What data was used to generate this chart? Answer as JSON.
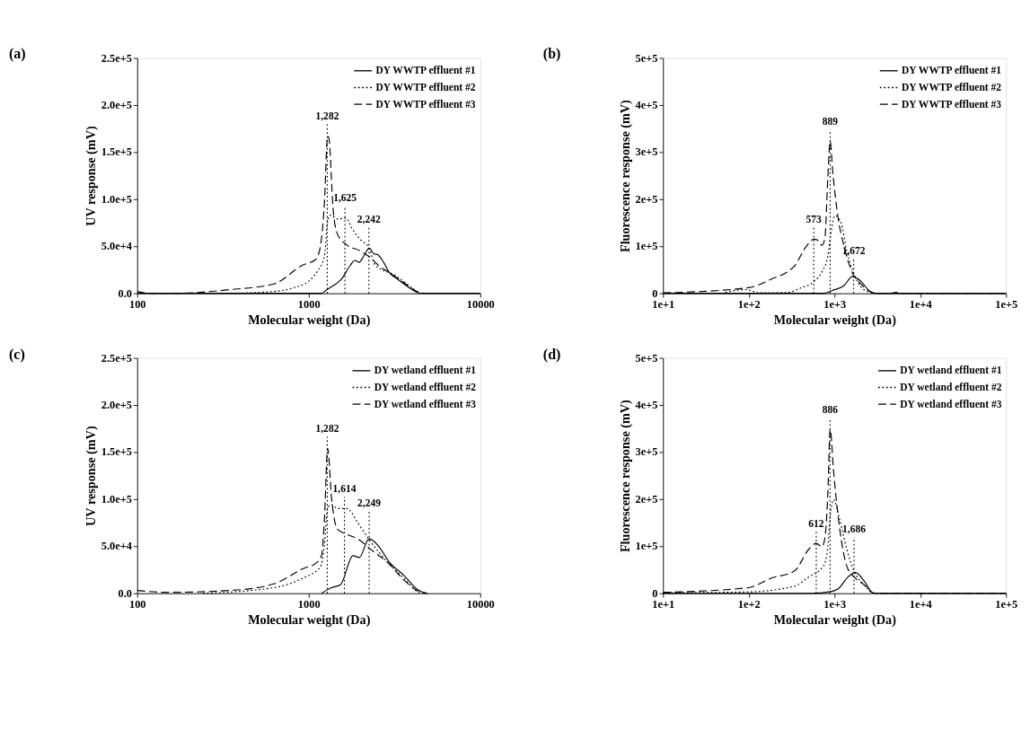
{
  "chart_data": [
    {
      "type": "line",
      "title": "(a)",
      "xlabel": "Molecular weight (Da)",
      "ylabel": "UV response (mV)",
      "log": "x",
      "grid": false,
      "legend": "top right",
      "xlim": [
        100,
        10000
      ],
      "xticks": [
        100,
        1000,
        10000
      ],
      "ylim": [
        0,
        250000
      ],
      "yticks": [
        {
          "value": 0,
          "label": "0.0"
        },
        {
          "value": 50000,
          "label": "5.0e+4"
        },
        {
          "value": 100000,
          "label": "1.0e+5"
        },
        {
          "value": 150000,
          "label": "1.5e+5"
        },
        {
          "value": 200000,
          "label": "2.0e+5"
        },
        {
          "value": 250000,
          "label": "2.5e+5"
        }
      ],
      "series": [
        {
          "name": "DY WWTP effluent #1",
          "color": "#000000",
          "line_style": "solid",
          "x": [
            100,
            1180,
            1300,
            1387,
            1550,
            1750,
            1854,
            1963,
            2100,
            2249,
            2400,
            2528,
            2750,
            2951,
            3300,
            3589,
            4000,
            4500,
            5000,
            10000
          ],
          "values": [
            0,
            0,
            5000,
            8000,
            15000,
            30000,
            35000,
            33000,
            40000,
            48000,
            42000,
            41000,
            32000,
            22000,
            15000,
            10000,
            4000,
            0,
            0,
            0
          ]
        },
        {
          "name": "DY WWTP effluent #2",
          "color": "#000000",
          "line_style": "dotted",
          "x": [
            349,
            625,
            820,
            1000,
            1119,
            1233,
            1288,
            1332,
            1469,
            1650,
            1785,
            2000,
            2249,
            2437,
            3192,
            3732,
            4188,
            4400
          ],
          "values": [
            0,
            2000,
            6000,
            13000,
            23000,
            39000,
            77000,
            83000,
            79000,
            80000,
            69000,
            57000,
            48000,
            30000,
            19000,
            10000,
            3000,
            0
          ]
        },
        {
          "name": "DY WWTP effluent #3",
          "color": "#000000",
          "line_style": "dashed",
          "x": [
            100,
            120,
            161,
            349,
            625,
            922,
            1097,
            1164,
            1233,
            1288,
            1310,
            1387,
            1469,
            1650,
            2000,
            2249,
            2620,
            2951,
            3732,
            4400,
            4700
          ],
          "values": [
            2000,
            0,
            0,
            4000,
            10000,
            30000,
            36000,
            48000,
            95000,
            167000,
            165000,
            89000,
            63000,
            52000,
            45000,
            39000,
            28000,
            22000,
            9000,
            1000,
            0
          ]
        }
      ],
      "ref_lines": [
        {
          "axis": "x",
          "value": 1282,
          "label": "1,282",
          "line_style": "dotted"
        },
        {
          "axis": "x",
          "value": 1625,
          "label": "1,625",
          "line_style": "dotted"
        },
        {
          "axis": "x",
          "value": 2242,
          "label": "2,242",
          "line_style": "dotted"
        }
      ]
    },
    {
      "type": "line",
      "title": "(b)",
      "xlabel": "Molecular weight (Da)",
      "ylabel": "Fluorescence response (mV)",
      "log": "x",
      "grid": false,
      "legend": "top right",
      "xlim": [
        10,
        100000
      ],
      "xticks": [
        {
          "value": 10,
          "label": "1e+1"
        },
        {
          "value": 100,
          "label": "1e+2"
        },
        {
          "value": 1000,
          "label": "1e+3"
        },
        {
          "value": 10000,
          "label": "1e+4"
        },
        {
          "value": 100000,
          "label": "1e+5"
        }
      ],
      "ylim": [
        0,
        500000
      ],
      "yticks": [
        0,
        {
          "value": 100000,
          "label": "1e+5"
        },
        {
          "value": 200000,
          "label": "2e+5"
        },
        {
          "value": 300000,
          "label": "3e+5"
        },
        {
          "value": 400000,
          "label": "4e+5"
        },
        {
          "value": 500000,
          "label": "5e+5"
        }
      ],
      "series": [
        {
          "name": "DY WWTP effluent #1",
          "color": "#000000",
          "line_style": "solid",
          "x": [
            10,
            743,
            940,
            1282,
            1621,
            2051,
            2590,
            3000,
            100000
          ],
          "values": [
            0,
            0,
            6000,
            16000,
            36000,
            25000,
            4000,
            0,
            0
          ]
        },
        {
          "name": "DY WWTP effluent #2",
          "color": "#000000",
          "line_style": "dotted",
          "x": [
            48,
            90,
            133,
            291,
            398,
            573,
            714,
            835,
            903,
            1016,
            1189,
            1388,
            1621,
            2051,
            2590,
            3000,
            100000
          ],
          "values": [
            0,
            8000,
            1000,
            2000,
            11000,
            25000,
            46000,
            79000,
            126000,
            165000,
            150000,
            90000,
            49000,
            13000,
            2000,
            0,
            0
          ]
        },
        {
          "name": "DY WWTP effluent #3",
          "color": "#000000",
          "line_style": "dashed",
          "x": [
            10,
            100,
            182,
            340,
            465,
            573,
            636,
            714,
            772,
            835,
            889,
            955,
            1097,
            1282,
            1621,
            2051,
            2590,
            3000,
            4500,
            5200,
            6000,
            100000
          ],
          "values": [
            1000,
            12000,
            30000,
            58000,
            99000,
            115000,
            113000,
            102000,
            117000,
            245000,
            323000,
            257000,
            162000,
            102000,
            43000,
            19000,
            4000,
            0,
            0,
            2000,
            0,
            0
          ]
        }
      ],
      "ref_lines": [
        {
          "axis": "x",
          "value": 573,
          "label": "573",
          "line_style": "dotted"
        },
        {
          "axis": "x",
          "value": 889,
          "label": "889",
          "line_style": "dotted"
        },
        {
          "axis": "x",
          "value": 1672,
          "label": "1,672",
          "line_style": "dotted"
        }
      ]
    },
    {
      "type": "line",
      "title": "(c)",
      "xlabel": "Molecular weight (Da)",
      "ylabel": "UV response (mV)",
      "log": "x",
      "grid": false,
      "legend": "top right",
      "xlim": [
        100,
        10000
      ],
      "xticks": [
        100,
        1000,
        10000
      ],
      "ylim": [
        0,
        250000
      ],
      "yticks": [
        {
          "value": 0,
          "label": "0.0"
        },
        {
          "value": 50000,
          "label": "5.0e+4"
        },
        {
          "value": 100000,
          "label": "1.0e+5"
        },
        {
          "value": 150000,
          "label": "1.5e+5"
        },
        {
          "value": 200000,
          "label": "2.0e+5"
        },
        {
          "value": 250000,
          "label": "2.5e+5"
        }
      ],
      "series": [
        {
          "name": "DY wetland effluent #1",
          "color": "#000000",
          "line_style": "solid",
          "x": [
            1186,
            1360,
            1530,
            1810,
            1970,
            2249,
            2530,
            2951,
            3589,
            4380,
            4900
          ],
          "values": [
            0,
            6000,
            9000,
            40000,
            38000,
            58000,
            51000,
            33000,
            19000,
            3000,
            0
          ]
        },
        {
          "name": "DY wetland effluent #2",
          "color": "#000000",
          "line_style": "dotted",
          "x": [
            242,
            625,
            922,
            1170,
            1233,
            1288,
            1360,
            1469,
            1670,
            1930,
            2249,
            2951,
            3589,
            4380,
            4600
          ],
          "values": [
            0,
            6000,
            16000,
            28000,
            51000,
            91000,
            94000,
            90000,
            90000,
            75000,
            57000,
            31000,
            16000,
            1000,
            0
          ]
        },
        {
          "name": "DY wetland effluent #3",
          "color": "#000000",
          "line_style": "dashed",
          "x": [
            100,
            149,
            349,
            625,
            922,
            1119,
            1186,
            1233,
            1288,
            1360,
            1469,
            1650,
            2000,
            2249,
            2951,
            3589,
            4380,
            4900
          ],
          "values": [
            3000,
            1000,
            3000,
            10000,
            26000,
            33000,
            40000,
            77000,
            154000,
            100000,
            68000,
            63000,
            56000,
            48000,
            31000,
            14000,
            2000,
            0
          ]
        }
      ],
      "ref_lines": [
        {
          "axis": "x",
          "value": 1282,
          "label": "1,282",
          "line_style": "dotted"
        },
        {
          "axis": "x",
          "value": 1614,
          "label": "1,614",
          "line_style": "dotted"
        },
        {
          "axis": "x",
          "value": 2249,
          "label": "2,249",
          "line_style": "dotted"
        }
      ]
    },
    {
      "type": "line",
      "title": "(d)",
      "xlabel": "Molecular weight (Da)",
      "ylabel": "Fluorescence response (mV)",
      "log": "x",
      "grid": false,
      "legend": "top right",
      "xlim": [
        10,
        100000
      ],
      "xticks": [
        {
          "value": 10,
          "label": "1e+1"
        },
        {
          "value": 100,
          "label": "1e+2"
        },
        {
          "value": 1000,
          "label": "1e+3"
        },
        {
          "value": 10000,
          "label": "1e+4"
        },
        {
          "value": 100000,
          "label": "1e+5"
        }
      ],
      "ylim": [
        0,
        500000
      ],
      "yticks": [
        0,
        {
          "value": 100000,
          "label": "1e+5"
        },
        {
          "value": 200000,
          "label": "2e+5"
        },
        {
          "value": 300000,
          "label": "3e+5"
        },
        {
          "value": 400000,
          "label": "4e+5"
        },
        {
          "value": 500000,
          "label": "5e+5"
        }
      ],
      "series": [
        {
          "name": "DY wetland effluent #1",
          "color": "#000000",
          "line_style": "solid",
          "x": [
            10,
            545,
            870,
            1097,
            1442,
            1754,
            2218,
            2800,
            3200,
            100000
          ],
          "values": [
            0,
            0,
            3000,
            9000,
            35000,
            44000,
            26000,
            1000,
            0,
            0
          ]
        },
        {
          "name": "DY wetland effluent #2",
          "color": "#000000",
          "line_style": "dotted",
          "x": [
            10,
            100,
            340,
            503,
            743,
            835,
            903,
            977,
            1143,
            1388,
            1686,
            2218,
            2800,
            3200,
            100000
          ],
          "values": [
            1000,
            3000,
            15000,
            35000,
            58000,
            99000,
            175000,
            199000,
            158000,
            94000,
            47000,
            18000,
            1000,
            0,
            0
          ]
        },
        {
          "name": "DY wetland effluent #3",
          "color": "#000000",
          "line_style": "dashed",
          "x": [
            10,
            100,
            182,
            340,
            503,
            611,
            714,
            772,
            835,
            889,
            977,
            1143,
            1388,
            1686,
            2218,
            2800,
            3200,
            100000
          ],
          "values": [
            2000,
            12000,
            32000,
            47000,
            94000,
            106000,
            99000,
            117000,
            211000,
            348000,
            257000,
            140000,
            58000,
            35000,
            18000,
            1000,
            0,
            0
          ]
        }
      ],
      "ref_lines": [
        {
          "axis": "x",
          "value": 612,
          "label": "612",
          "line_style": "dotted"
        },
        {
          "axis": "x",
          "value": 886,
          "label": "886",
          "line_style": "dotted"
        },
        {
          "axis": "x",
          "value": 1686,
          "label": "1,686",
          "line_style": "dotted"
        }
      ]
    }
  ]
}
